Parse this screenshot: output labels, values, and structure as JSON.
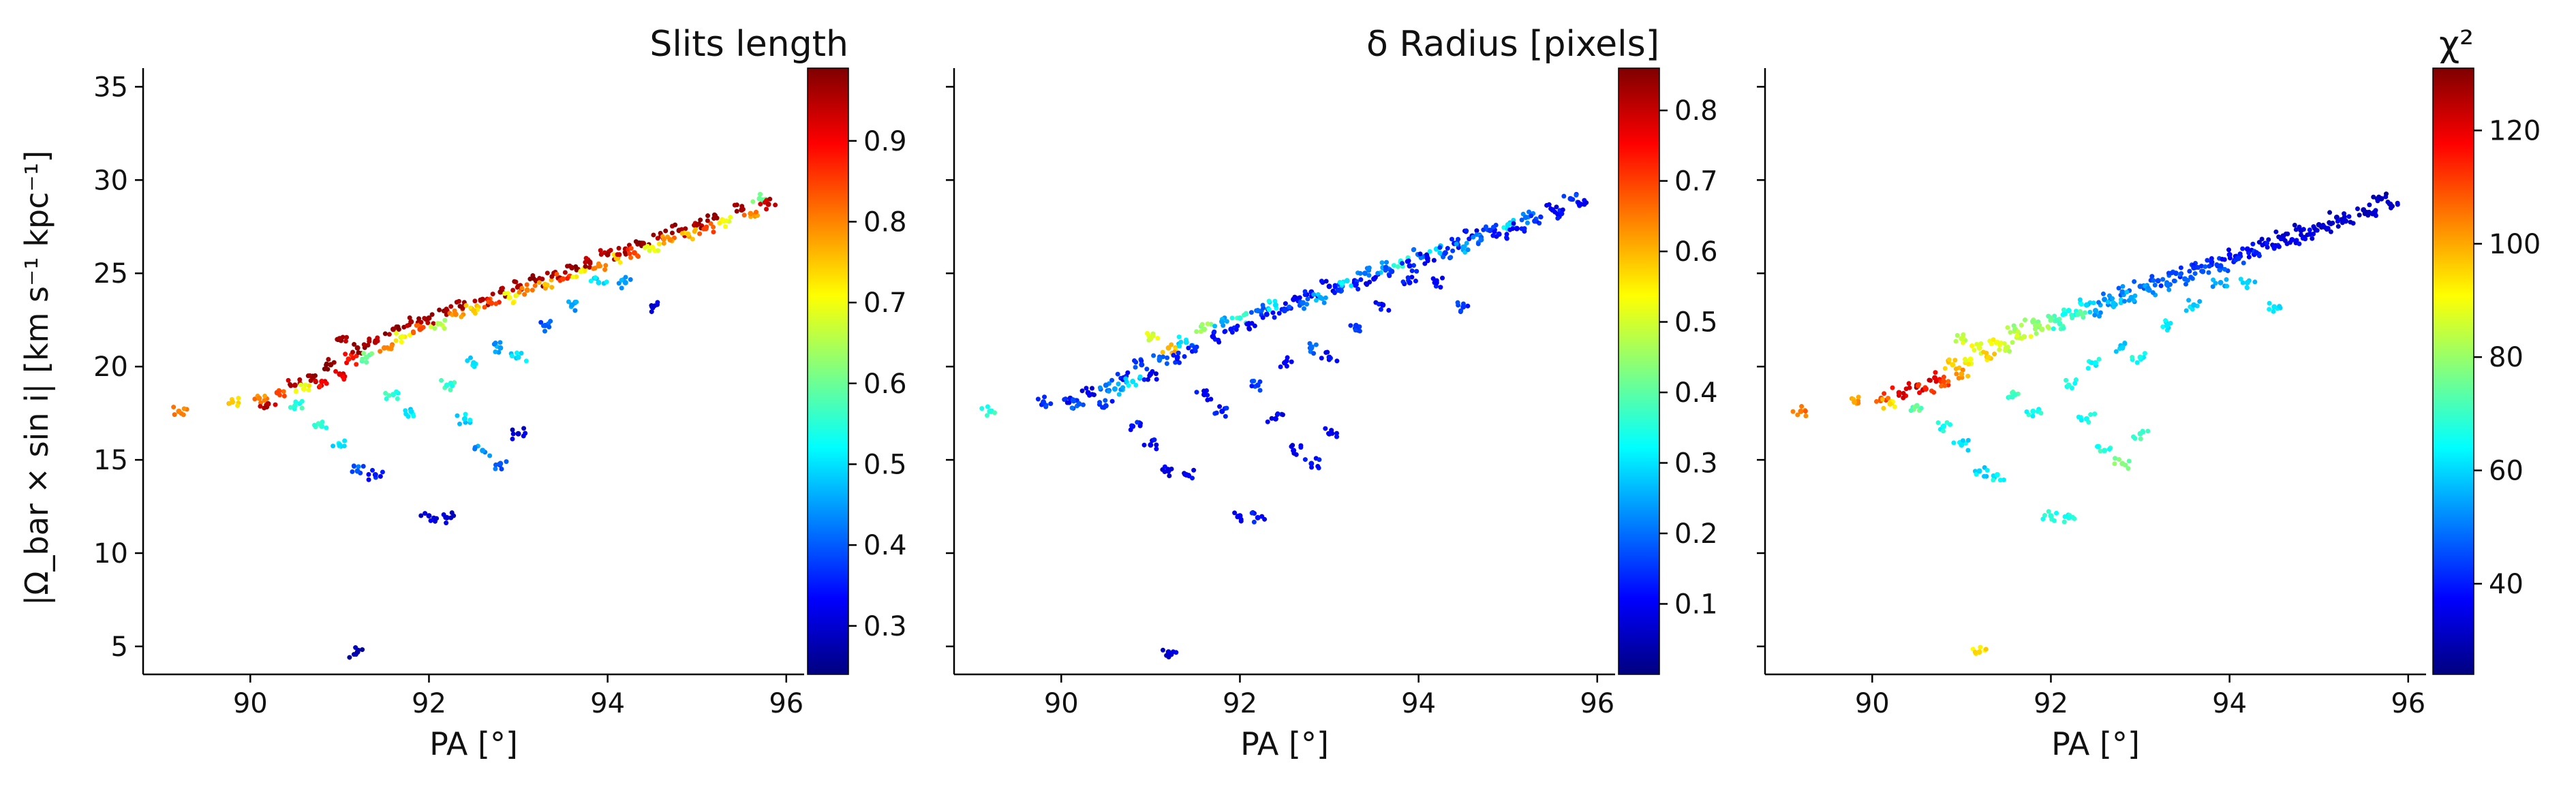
{
  "figure": {
    "ylabel": "|Ω_bar × sin i|   [km s⁻¹ kpc⁻¹]"
  },
  "chart_data": [
    {
      "type": "scatter",
      "colorbar_title": "Slits length",
      "xlabel": "PA [°]",
      "xlim": [
        88.8,
        96.2
      ],
      "ylim": [
        3.5,
        36
      ],
      "xticks": [
        90,
        92,
        94,
        96
      ],
      "yticks": [
        5,
        10,
        15,
        20,
        25,
        30,
        35
      ],
      "colormap": "jet",
      "clim": [
        0.24,
        0.99
      ],
      "cticks": [
        0.3,
        0.4,
        0.5,
        0.6,
        0.7,
        0.8,
        0.9
      ],
      "colormap_stops": [
        "#00007f",
        "#0000ff",
        "#0080ff",
        "#00ffff",
        "#80ff80",
        "#ffff00",
        "#ff8000",
        "#ff0000",
        "#7f0000"
      ],
      "points": [
        [
          89.2,
          17.6,
          0.8
        ],
        [
          89.8,
          18.1,
          0.75
        ],
        [
          90.1,
          18.3,
          0.8
        ],
        [
          90.2,
          18.0,
          0.95
        ],
        [
          90.3,
          18.6,
          0.85
        ],
        [
          90.5,
          19.0,
          0.95
        ],
        [
          90.6,
          18.8,
          0.7
        ],
        [
          90.7,
          19.4,
          0.97
        ],
        [
          90.8,
          19.2,
          0.9
        ],
        [
          90.9,
          20.1,
          0.98
        ],
        [
          91.0,
          19.6,
          0.92
        ],
        [
          91.0,
          21.5,
          0.96
        ],
        [
          91.1,
          20.4,
          0.88
        ],
        [
          91.2,
          21.0,
          0.97
        ],
        [
          91.3,
          20.5,
          0.6
        ],
        [
          91.4,
          21.3,
          0.95
        ],
        [
          91.5,
          21.0,
          0.8
        ],
        [
          91.6,
          22.0,
          0.97
        ],
        [
          91.7,
          21.6,
          0.7
        ],
        [
          91.8,
          22.4,
          0.96
        ],
        [
          91.9,
          22.0,
          0.85
        ],
        [
          92.0,
          22.6,
          0.97
        ],
        [
          92.1,
          22.3,
          0.65
        ],
        [
          92.2,
          23.0,
          0.96
        ],
        [
          92.3,
          22.8,
          0.8
        ],
        [
          92.4,
          23.3,
          0.97
        ],
        [
          92.5,
          23.0,
          0.75
        ],
        [
          92.6,
          23.6,
          0.96
        ],
        [
          92.7,
          23.4,
          0.85
        ],
        [
          92.8,
          24.0,
          0.97
        ],
        [
          92.9,
          23.7,
          0.7
        ],
        [
          93.0,
          24.3,
          0.96
        ],
        [
          93.1,
          24.1,
          0.8
        ],
        [
          93.2,
          24.6,
          0.97
        ],
        [
          93.3,
          24.4,
          0.75
        ],
        [
          93.4,
          25.0,
          0.96
        ],
        [
          93.5,
          24.7,
          0.85
        ],
        [
          93.6,
          25.3,
          0.97
        ],
        [
          93.7,
          25.1,
          0.7
        ],
        [
          93.8,
          25.6,
          0.96
        ],
        [
          93.9,
          25.4,
          0.8
        ],
        [
          94.0,
          26.0,
          0.97
        ],
        [
          94.1,
          25.8,
          0.75
        ],
        [
          94.2,
          26.3,
          0.96
        ],
        [
          94.3,
          26.1,
          0.85
        ],
        [
          94.4,
          26.6,
          0.97
        ],
        [
          94.5,
          26.4,
          0.7
        ],
        [
          94.6,
          27.0,
          0.96
        ],
        [
          94.7,
          26.8,
          0.8
        ],
        [
          94.8,
          27.3,
          0.97
        ],
        [
          94.9,
          27.1,
          0.75
        ],
        [
          95.0,
          27.6,
          0.96
        ],
        [
          95.1,
          27.4,
          0.85
        ],
        [
          95.2,
          28.0,
          0.97
        ],
        [
          95.3,
          27.8,
          0.7
        ],
        [
          95.5,
          28.4,
          0.96
        ],
        [
          95.6,
          28.2,
          0.8
        ],
        [
          95.7,
          29.0,
          0.6
        ],
        [
          95.8,
          28.7,
          0.95
        ],
        [
          90.5,
          17.9,
          0.55
        ],
        [
          90.8,
          16.8,
          0.55
        ],
        [
          91.0,
          15.8,
          0.5
        ],
        [
          91.2,
          14.4,
          0.4
        ],
        [
          91.4,
          14.2,
          0.35
        ],
        [
          91.6,
          18.5,
          0.55
        ],
        [
          91.8,
          17.6,
          0.5
        ],
        [
          92.0,
          12.0,
          0.3
        ],
        [
          92.2,
          11.9,
          0.3
        ],
        [
          92.4,
          17.2,
          0.5
        ],
        [
          92.6,
          15.5,
          0.45
        ],
        [
          92.8,
          14.8,
          0.4
        ],
        [
          93.0,
          16.4,
          0.3
        ],
        [
          92.2,
          19.0,
          0.55
        ],
        [
          92.5,
          20.2,
          0.5
        ],
        [
          92.8,
          21.0,
          0.45
        ],
        [
          93.0,
          20.5,
          0.5
        ],
        [
          93.3,
          22.2,
          0.4
        ],
        [
          93.6,
          23.3,
          0.45
        ],
        [
          93.9,
          24.5,
          0.5
        ],
        [
          94.2,
          24.5,
          0.45
        ],
        [
          94.5,
          23.2,
          0.3
        ],
        [
          91.2,
          4.7,
          0.27
        ]
      ]
    },
    {
      "type": "scatter",
      "colorbar_title": "δ Radius [pixels]",
      "xlabel": "PA [°]",
      "xlim": [
        88.8,
        96.2
      ],
      "ylim": [
        3.5,
        36
      ],
      "xticks": [
        90,
        92,
        94,
        96
      ],
      "yticks": [
        5,
        10,
        15,
        20,
        25,
        30,
        35
      ],
      "colormap": "jet",
      "clim": [
        0.0,
        0.86
      ],
      "cticks": [
        0.1,
        0.2,
        0.3,
        0.4,
        0.5,
        0.6,
        0.7,
        0.8
      ],
      "colormap_stops": [
        "#00007f",
        "#0000ff",
        "#0080ff",
        "#00ffff",
        "#80ff80",
        "#ffff00",
        "#ff8000",
        "#ff0000",
        "#7f0000"
      ],
      "points": [
        [
          89.2,
          17.6,
          0.35
        ],
        [
          89.8,
          18.1,
          0.15
        ],
        [
          90.1,
          18.3,
          0.12
        ],
        [
          90.2,
          18.0,
          0.18
        ],
        [
          90.3,
          18.6,
          0.1
        ],
        [
          90.5,
          19.0,
          0.2
        ],
        [
          90.6,
          18.8,
          0.25
        ],
        [
          90.7,
          19.4,
          0.12
        ],
        [
          90.8,
          19.2,
          0.3
        ],
        [
          90.9,
          20.1,
          0.15
        ],
        [
          91.0,
          19.6,
          0.1
        ],
        [
          91.0,
          21.5,
          0.5
        ],
        [
          91.1,
          20.4,
          0.2
        ],
        [
          91.2,
          21.0,
          0.6
        ],
        [
          91.3,
          20.5,
          0.12
        ],
        [
          91.4,
          21.3,
          0.3
        ],
        [
          91.5,
          21.0,
          0.15
        ],
        [
          91.6,
          22.0,
          0.45
        ],
        [
          91.7,
          21.6,
          0.1
        ],
        [
          91.8,
          22.4,
          0.25
        ],
        [
          91.9,
          22.0,
          0.12
        ],
        [
          92.0,
          22.6,
          0.35
        ],
        [
          92.1,
          22.3,
          0.1
        ],
        [
          92.2,
          23.0,
          0.2
        ],
        [
          92.3,
          22.8,
          0.12
        ],
        [
          92.4,
          23.3,
          0.3
        ],
        [
          92.5,
          23.0,
          0.15
        ],
        [
          92.6,
          23.6,
          0.1
        ],
        [
          92.7,
          23.4,
          0.2
        ],
        [
          92.8,
          24.0,
          0.12
        ],
        [
          92.9,
          23.7,
          0.25
        ],
        [
          93.0,
          24.3,
          0.1
        ],
        [
          93.1,
          24.1,
          0.15
        ],
        [
          93.2,
          24.6,
          0.3
        ],
        [
          93.3,
          24.4,
          0.12
        ],
        [
          93.4,
          25.0,
          0.2
        ],
        [
          93.5,
          24.7,
          0.1
        ],
        [
          93.6,
          25.3,
          0.25
        ],
        [
          93.7,
          25.1,
          0.15
        ],
        [
          93.8,
          25.6,
          0.35
        ],
        [
          93.9,
          25.4,
          0.12
        ],
        [
          94.0,
          26.0,
          0.2
        ],
        [
          94.1,
          25.8,
          0.1
        ],
        [
          94.2,
          26.3,
          0.3
        ],
        [
          94.3,
          26.1,
          0.15
        ],
        [
          94.4,
          26.6,
          0.12
        ],
        [
          94.5,
          26.4,
          0.25
        ],
        [
          94.6,
          27.0,
          0.1
        ],
        [
          94.7,
          26.8,
          0.2
        ],
        [
          94.8,
          27.3,
          0.15
        ],
        [
          94.9,
          27.1,
          0.12
        ],
        [
          95.0,
          27.6,
          0.3
        ],
        [
          95.1,
          27.4,
          0.1
        ],
        [
          95.2,
          28.0,
          0.2
        ],
        [
          95.3,
          27.8,
          0.15
        ],
        [
          95.5,
          28.4,
          0.1
        ],
        [
          95.6,
          28.2,
          0.12
        ],
        [
          95.7,
          29.0,
          0.15
        ],
        [
          95.8,
          28.7,
          0.1
        ],
        [
          90.5,
          17.9,
          0.15
        ],
        [
          90.8,
          16.8,
          0.12
        ],
        [
          91.0,
          15.8,
          0.1
        ],
        [
          91.2,
          14.4,
          0.08
        ],
        [
          91.4,
          14.2,
          0.1
        ],
        [
          91.6,
          18.5,
          0.1
        ],
        [
          91.8,
          17.6,
          0.12
        ],
        [
          92.0,
          12.0,
          0.1
        ],
        [
          92.2,
          11.9,
          0.12
        ],
        [
          92.4,
          17.2,
          0.1
        ],
        [
          92.6,
          15.5,
          0.1
        ],
        [
          92.8,
          14.8,
          0.12
        ],
        [
          93.0,
          16.4,
          0.1
        ],
        [
          92.2,
          19.0,
          0.15
        ],
        [
          92.5,
          20.2,
          0.1
        ],
        [
          92.8,
          21.0,
          0.2
        ],
        [
          93.0,
          20.5,
          0.12
        ],
        [
          93.3,
          22.2,
          0.15
        ],
        [
          93.6,
          23.3,
          0.1
        ],
        [
          93.9,
          24.5,
          0.12
        ],
        [
          94.2,
          24.5,
          0.1
        ],
        [
          94.5,
          23.2,
          0.15
        ],
        [
          91.2,
          4.7,
          0.08
        ]
      ]
    },
    {
      "type": "scatter",
      "colorbar_title": "χ²",
      "xlabel": "PA [°]",
      "xlim": [
        88.8,
        96.2
      ],
      "ylim": [
        3.5,
        36
      ],
      "xticks": [
        90,
        92,
        94,
        96
      ],
      "yticks": [
        5,
        10,
        15,
        20,
        25,
        30,
        35
      ],
      "colormap": "jet",
      "clim": [
        24,
        131
      ],
      "cticks": [
        40,
        60,
        80,
        100,
        120
      ],
      "colormap_stops": [
        "#00007f",
        "#0000ff",
        "#0080ff",
        "#00ffff",
        "#80ff80",
        "#ffff00",
        "#ff8000",
        "#ff0000",
        "#7f0000"
      ],
      "points": [
        [
          89.2,
          17.6,
          105
        ],
        [
          89.8,
          18.1,
          100
        ],
        [
          90.1,
          18.3,
          110
        ],
        [
          90.2,
          18.0,
          95
        ],
        [
          90.3,
          18.6,
          120
        ],
        [
          90.5,
          19.0,
          125
        ],
        [
          90.6,
          18.8,
          115
        ],
        [
          90.7,
          19.4,
          120
        ],
        [
          90.8,
          19.2,
          110
        ],
        [
          90.9,
          20.1,
          95
        ],
        [
          91.0,
          19.6,
          100
        ],
        [
          91.0,
          21.5,
          85
        ],
        [
          91.1,
          20.4,
          90
        ],
        [
          91.2,
          21.0,
          88
        ],
        [
          91.3,
          20.5,
          95
        ],
        [
          91.4,
          21.3,
          90
        ],
        [
          91.5,
          21.0,
          85
        ],
        [
          91.6,
          22.0,
          80
        ],
        [
          91.7,
          21.6,
          85
        ],
        [
          91.8,
          22.4,
          78
        ],
        [
          91.9,
          22.0,
          82
        ],
        [
          92.0,
          22.6,
          75
        ],
        [
          92.1,
          22.3,
          70
        ],
        [
          92.2,
          23.0,
          65
        ],
        [
          92.3,
          22.8,
          72
        ],
        [
          92.4,
          23.3,
          60
        ],
        [
          92.5,
          23.0,
          55
        ],
        [
          92.6,
          23.6,
          52
        ],
        [
          92.7,
          23.4,
          58
        ],
        [
          92.8,
          24.0,
          50
        ],
        [
          92.9,
          23.7,
          55
        ],
        [
          93.0,
          24.3,
          48
        ],
        [
          93.1,
          24.1,
          52
        ],
        [
          93.2,
          24.6,
          45
        ],
        [
          93.3,
          24.4,
          50
        ],
        [
          93.4,
          25.0,
          44
        ],
        [
          93.5,
          24.7,
          48
        ],
        [
          93.6,
          25.3,
          42
        ],
        [
          93.7,
          25.1,
          46
        ],
        [
          93.8,
          25.6,
          40
        ],
        [
          93.9,
          25.4,
          44
        ],
        [
          94.0,
          26.0,
          38
        ],
        [
          94.1,
          25.8,
          42
        ],
        [
          94.2,
          26.3,
          36
        ],
        [
          94.3,
          26.1,
          40
        ],
        [
          94.4,
          26.6,
          34
        ],
        [
          94.5,
          26.4,
          38
        ],
        [
          94.6,
          27.0,
          33
        ],
        [
          94.7,
          26.8,
          36
        ],
        [
          94.8,
          27.3,
          32
        ],
        [
          94.9,
          27.1,
          35
        ],
        [
          95.0,
          27.6,
          31
        ],
        [
          95.1,
          27.4,
          34
        ],
        [
          95.2,
          28.0,
          30
        ],
        [
          95.3,
          27.8,
          33
        ],
        [
          95.5,
          28.4,
          30
        ],
        [
          95.6,
          28.2,
          32
        ],
        [
          95.7,
          29.0,
          30
        ],
        [
          95.8,
          28.7,
          31
        ],
        [
          90.5,
          17.9,
          75
        ],
        [
          90.8,
          16.8,
          65
        ],
        [
          91.0,
          15.8,
          62
        ],
        [
          91.2,
          14.4,
          60
        ],
        [
          91.4,
          14.2,
          64
        ],
        [
          91.6,
          18.5,
          70
        ],
        [
          91.8,
          17.6,
          66
        ],
        [
          92.0,
          12.0,
          68
        ],
        [
          92.2,
          11.9,
          66
        ],
        [
          92.4,
          17.2,
          65
        ],
        [
          92.6,
          15.5,
          68
        ],
        [
          92.8,
          14.8,
          78
        ],
        [
          93.0,
          16.4,
          70
        ],
        [
          92.2,
          19.0,
          68
        ],
        [
          92.5,
          20.2,
          64
        ],
        [
          92.8,
          21.0,
          60
        ],
        [
          93.0,
          20.5,
          66
        ],
        [
          93.3,
          22.2,
          62
        ],
        [
          93.6,
          23.3,
          58
        ],
        [
          93.9,
          24.5,
          55
        ],
        [
          94.2,
          24.5,
          60
        ],
        [
          94.5,
          23.2,
          62
        ],
        [
          91.2,
          4.7,
          95
        ]
      ]
    }
  ]
}
